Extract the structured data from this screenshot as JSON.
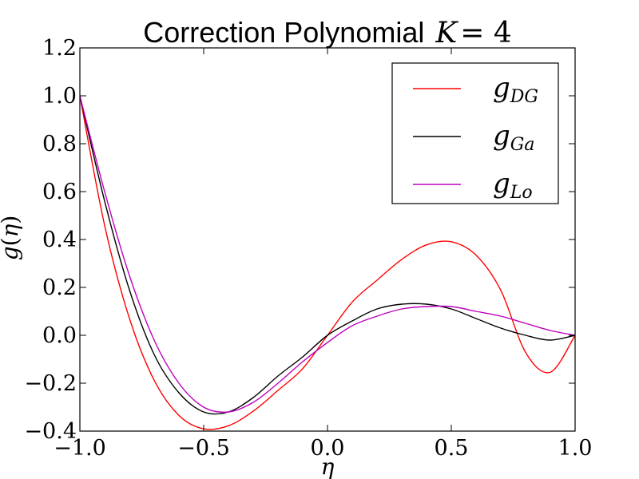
{
  "chart_data": {
    "type": "line",
    "title": {
      "text": "Correction Polynomial",
      "math_var": "K",
      "math_eq": " = ",
      "math_val": "4"
    },
    "xlabel": "η",
    "ylabel": {
      "func": "g",
      "open": "(",
      "arg": "η",
      "close": ")"
    },
    "xlim": [
      -1.0,
      1.0
    ],
    "ylim": [
      -0.4,
      1.2
    ],
    "x_ticks": [
      -1.0,
      -0.5,
      0.0,
      0.5,
      1.0
    ],
    "y_ticks": [
      -0.4,
      -0.2,
      0.0,
      0.2,
      0.4,
      0.6,
      0.8,
      1.0,
      1.2
    ],
    "x_tick_labels": [
      "−1.0",
      "−0.5",
      "0.0",
      "0.5",
      "1.0"
    ],
    "y_tick_labels": [
      "−0.4",
      "−0.2",
      "0.0",
      "0.2",
      "0.4",
      "0.6",
      "0.8",
      "1.0",
      "1.2"
    ],
    "grid": false,
    "legend_position": "top-right",
    "series": [
      {
        "name": {
          "base": "g",
          "sub": "DG"
        },
        "color": "#ff0000",
        "x": [
          -1.0,
          -0.9,
          -0.8,
          -0.7,
          -0.6,
          -0.5,
          -0.4,
          -0.3,
          -0.2,
          -0.1,
          0.0,
          0.1,
          0.2,
          0.3,
          0.4,
          0.5,
          0.6,
          0.7,
          0.8,
          0.9,
          1.0
        ],
        "y": [
          1.0,
          0.4585,
          0.0712,
          -0.1876,
          -0.3344,
          -0.3906,
          -0.3776,
          -0.3169,
          -0.2301,
          -0.1389,
          -0.0,
          0.1389,
          0.2301,
          0.3169,
          0.3776,
          0.3906,
          0.3344,
          0.1876,
          -0.0712,
          -0.1541,
          0.0
        ]
      },
      {
        "name": {
          "base": "g",
          "sub": "Ga"
        },
        "color": "#000000",
        "x": [
          -1.0,
          -0.9,
          -0.8,
          -0.7,
          -0.6,
          -0.5,
          -0.4,
          -0.3,
          -0.2,
          -0.1,
          0.0,
          0.1,
          0.2,
          0.3,
          0.4,
          0.5,
          0.6,
          0.7,
          0.8,
          0.9,
          1.0
        ],
        "y": [
          1.0,
          0.56,
          0.19,
          -0.08,
          -0.24,
          -0.32,
          -0.32,
          -0.26,
          -0.17,
          -0.09,
          -0.0,
          0.06,
          0.11,
          0.13,
          0.13,
          0.11,
          0.07,
          0.03,
          0.0,
          -0.02,
          0.0
        ]
      },
      {
        "name": {
          "base": "g",
          "sub": "Lo"
        },
        "color": "#bf00bf",
        "x": [
          -1.0,
          -0.9,
          -0.8,
          -0.7,
          -0.6,
          -0.5,
          -0.4,
          -0.3,
          -0.2,
          -0.1,
          0.0,
          0.1,
          0.2,
          0.3,
          0.4,
          0.5,
          0.6,
          0.7,
          0.8,
          0.9,
          1.0
        ],
        "y": [
          1.0,
          0.6,
          0.25,
          -0.02,
          -0.2,
          -0.3,
          -0.32,
          -0.28,
          -0.2,
          -0.11,
          -0.03,
          0.04,
          0.08,
          0.11,
          0.12,
          0.12,
          0.1,
          0.08,
          0.05,
          0.02,
          0.0
        ]
      }
    ]
  }
}
